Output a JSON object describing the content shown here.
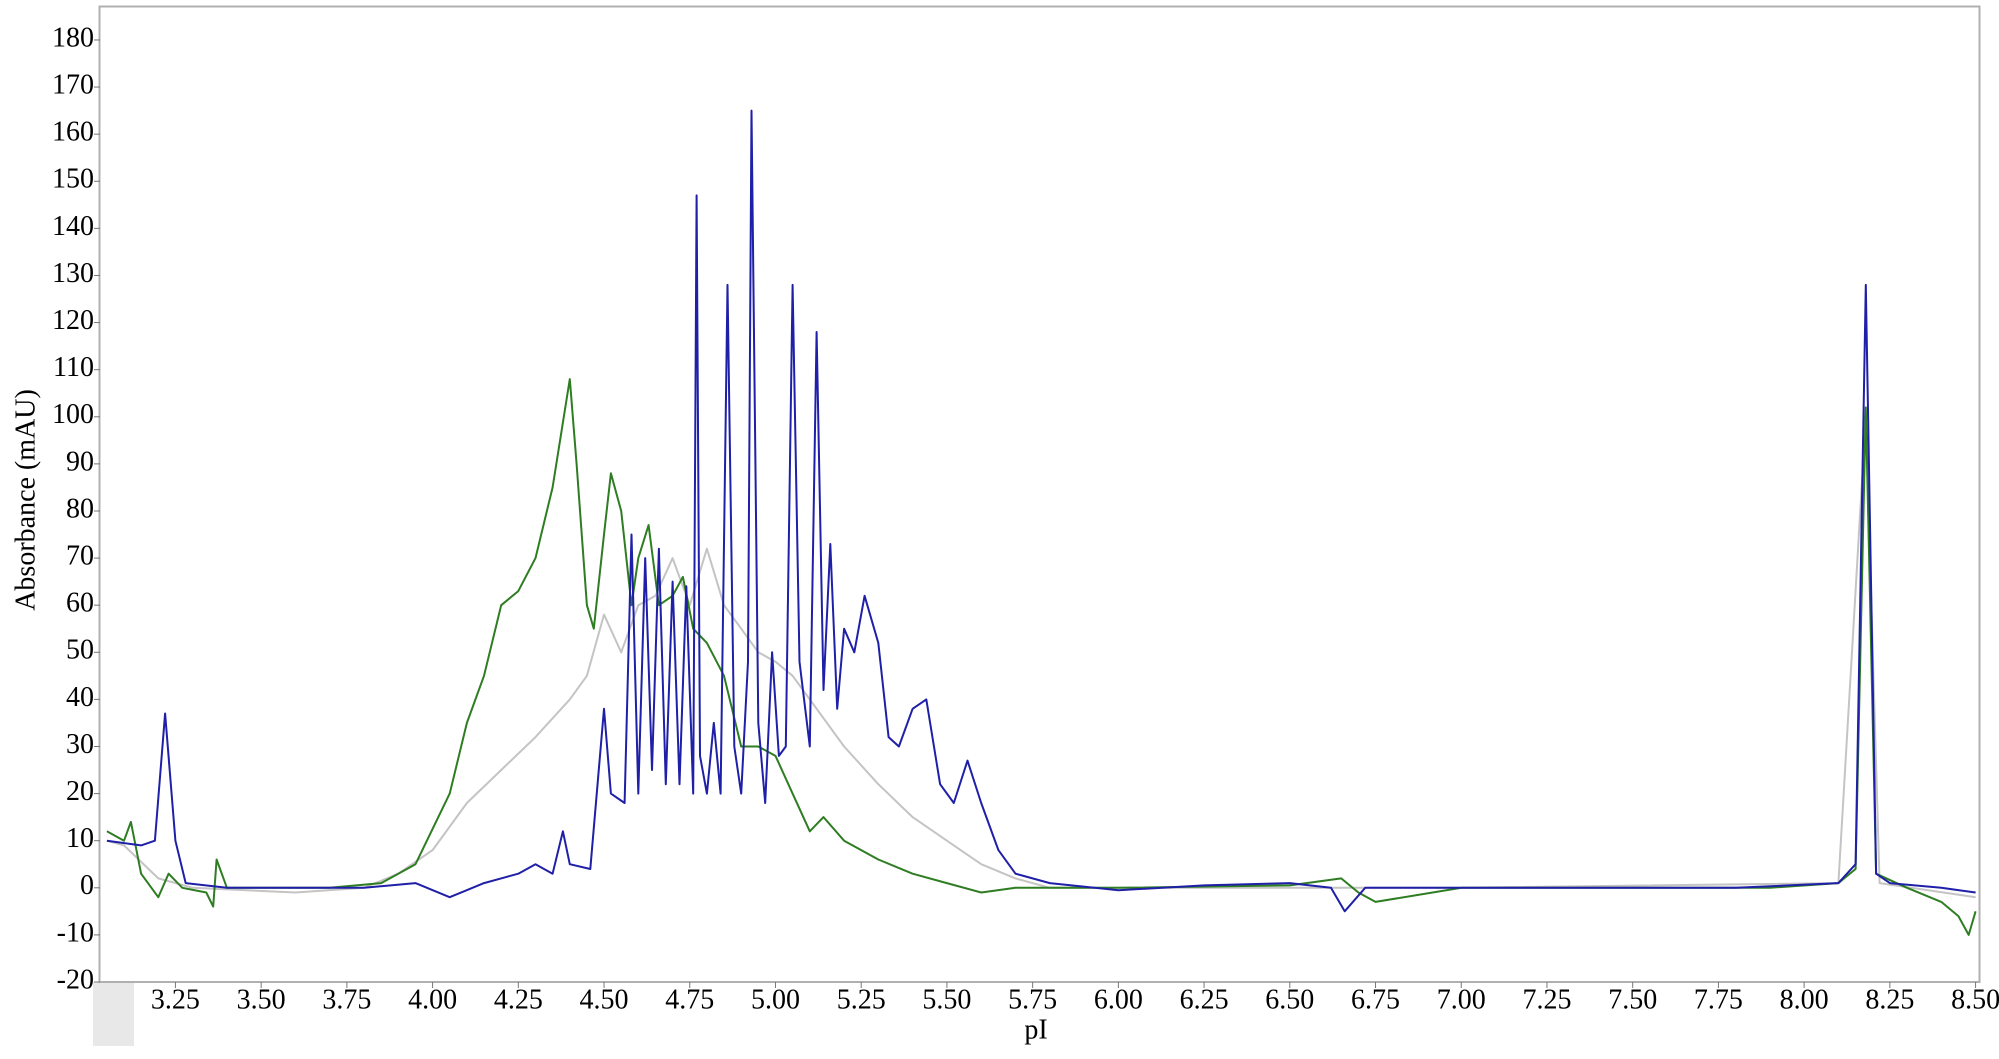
{
  "chart_data": {
    "type": "line",
    "xlabel": "pI",
    "ylabel": "Absorbance (mAU)",
    "xlim": [
      3.03,
      8.51
    ],
    "ylim": [
      -20,
      187
    ],
    "xticks": [
      3.25,
      {
        "value": 3.5,
        "label": "3.50"
      },
      3.75,
      {
        "value": 4,
        "label": "4.00"
      },
      4.25,
      {
        "value": 4.5,
        "label": "4.50"
      },
      4.75,
      {
        "value": 5,
        "label": "5.00"
      },
      5.25,
      {
        "value": 5.5,
        "label": "5.50"
      },
      5.75,
      {
        "value": 6,
        "label": "6.00"
      },
      6.25,
      {
        "value": 6.5,
        "label": "6.50"
      },
      6.75,
      {
        "value": 7,
        "label": "7.00"
      },
      7.25,
      {
        "value": 7.5,
        "label": "7.50"
      },
      7.75,
      {
        "value": 8,
        "label": "8.00"
      },
      8.25,
      {
        "value": 8.5,
        "label": "8.50"
      }
    ],
    "yticks": [
      -20,
      -10,
      0,
      10,
      20,
      30,
      40,
      50,
      60,
      70,
      80,
      90,
      100,
      110,
      120,
      130,
      140,
      150,
      160,
      170,
      180
    ],
    "series": [
      {
        "color": "#c4c4c4",
        "x": [
          3.05,
          3.1,
          3.2,
          3.3,
          3.6,
          3.8,
          3.9,
          4.0,
          4.1,
          4.2,
          4.3,
          4.4,
          4.45,
          4.5,
          4.55,
          4.6,
          4.65,
          4.7,
          4.75,
          4.8,
          4.85,
          4.9,
          4.95,
          5.0,
          5.05,
          5.1,
          5.15,
          5.2,
          5.3,
          5.4,
          5.5,
          5.6,
          5.7,
          5.8,
          6.5,
          7.0,
          8.1,
          8.18,
          8.22,
          8.5
        ],
        "values": [
          10,
          9,
          2,
          0,
          -1,
          0,
          3,
          8,
          18,
          25,
          32,
          40,
          45,
          58,
          50,
          60,
          62,
          70,
          60,
          72,
          60,
          55,
          50,
          48,
          45,
          40,
          35,
          30,
          22,
          15,
          10,
          5,
          2,
          0,
          0,
          0,
          1,
          100,
          1,
          -2
        ]
      },
      {
        "color": "#2e7d22",
        "x": [
          3.05,
          3.1,
          3.12,
          3.15,
          3.2,
          3.23,
          3.27,
          3.34,
          3.36,
          3.37,
          3.4,
          3.7,
          3.85,
          3.95,
          4.05,
          4.1,
          4.15,
          4.2,
          4.25,
          4.3,
          4.35,
          4.4,
          4.42,
          4.45,
          4.47,
          4.5,
          4.52,
          4.55,
          4.58,
          4.6,
          4.63,
          4.66,
          4.7,
          4.73,
          4.76,
          4.8,
          4.85,
          4.9,
          4.95,
          5.0,
          5.05,
          5.1,
          5.14,
          5.2,
          5.25,
          5.3,
          5.4,
          5.5,
          5.6,
          5.7,
          6.0,
          6.5,
          6.65,
          6.7,
          6.75,
          7.0,
          7.5,
          7.9,
          8.1,
          8.15,
          8.18,
          8.21,
          8.3,
          8.4,
          8.45,
          8.48,
          8.5
        ],
        "values": [
          12,
          10,
          14,
          3,
          -2,
          3,
          0,
          -1,
          -4,
          6,
          0,
          0,
          1,
          5,
          20,
          35,
          45,
          60,
          63,
          70,
          85,
          108,
          90,
          60,
          55,
          75,
          88,
          80,
          60,
          70,
          77,
          60,
          62,
          66,
          55,
          52,
          45,
          30,
          30,
          28,
          20,
          12,
          15,
          10,
          8,
          6,
          3,
          1,
          -1,
          0,
          0,
          0.5,
          2,
          -1,
          -3,
          0,
          0,
          0,
          1,
          4,
          102,
          3,
          0,
          -3,
          -6,
          -10,
          -5
        ]
      },
      {
        "color": "#1f1fa8",
        "x": [
          3.05,
          3.15,
          3.19,
          3.22,
          3.25,
          3.28,
          3.4,
          3.6,
          3.8,
          3.95,
          4.05,
          4.15,
          4.25,
          4.3,
          4.35,
          4.38,
          4.4,
          4.46,
          4.5,
          4.52,
          4.56,
          4.58,
          4.6,
          4.62,
          4.64,
          4.66,
          4.68,
          4.7,
          4.72,
          4.74,
          4.76,
          4.77,
          4.78,
          4.8,
          4.82,
          4.84,
          4.86,
          4.88,
          4.9,
          4.92,
          4.93,
          4.95,
          4.97,
          4.99,
          5.01,
          5.03,
          5.05,
          5.07,
          5.1,
          5.12,
          5.14,
          5.16,
          5.18,
          5.2,
          5.23,
          5.26,
          5.3,
          5.33,
          5.36,
          5.4,
          5.44,
          5.48,
          5.52,
          5.56,
          5.6,
          5.65,
          5.7,
          5.8,
          6.0,
          6.25,
          6.5,
          6.62,
          6.66,
          6.72,
          7.0,
          7.5,
          7.8,
          8.1,
          8.15,
          8.18,
          8.21,
          8.25,
          8.4,
          8.5
        ],
        "values": [
          10,
          9,
          10,
          37,
          10,
          1,
          0,
          0,
          0,
          1,
          -2,
          1,
          3,
          5,
          3,
          12,
          5,
          4,
          38,
          20,
          18,
          75,
          20,
          70,
          25,
          72,
          22,
          65,
          22,
          64,
          20,
          147,
          28,
          20,
          35,
          20,
          128,
          30,
          20,
          48,
          165,
          35,
          18,
          50,
          28,
          30,
          128,
          48,
          30,
          118,
          42,
          73,
          38,
          55,
          50,
          62,
          52,
          32,
          30,
          38,
          40,
          22,
          18,
          27,
          18,
          8,
          3,
          1,
          -0.5,
          0.5,
          1,
          0,
          -5,
          0,
          0,
          0,
          0,
          1,
          5,
          128,
          3,
          1,
          0,
          -1
        ]
      }
    ]
  }
}
